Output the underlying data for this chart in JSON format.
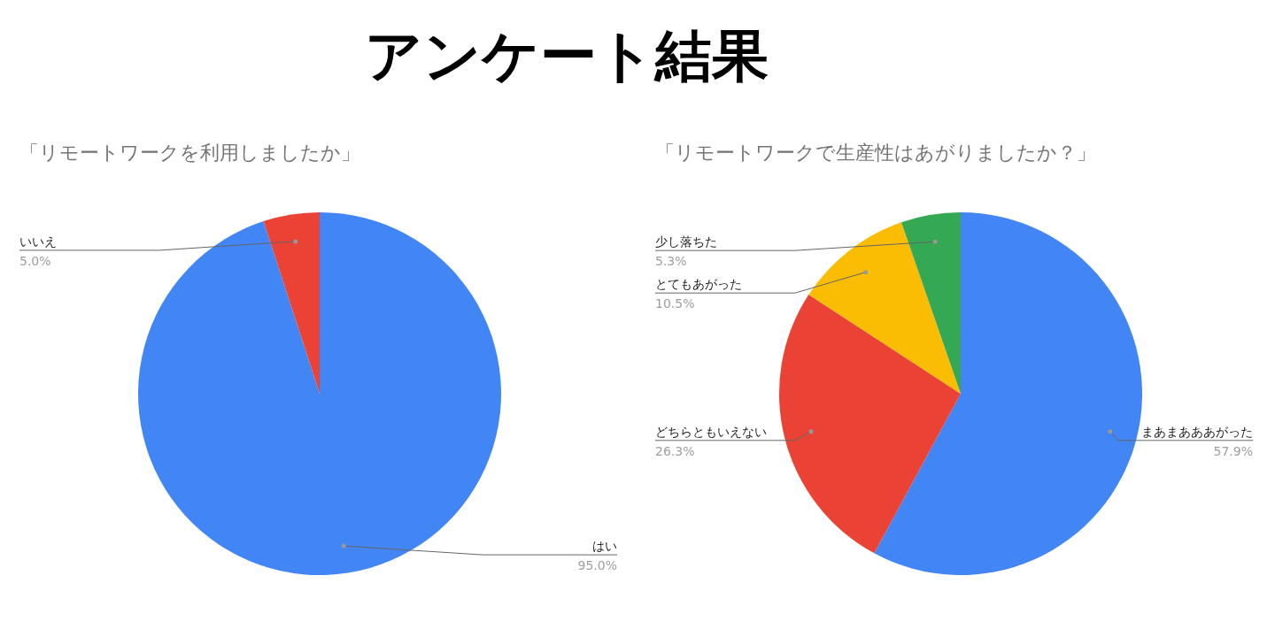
{
  "chart_data": [
    {
      "type": "other",
      "title": "アンケート結果"
    },
    {
      "type": "pie",
      "title": "「リモートワークを利用しましたか」",
      "categories": [
        "はい",
        "いいえ"
      ],
      "values": [
        95.0,
        5.0
      ],
      "colors": [
        "#4285f4",
        "#ea4335"
      ],
      "value_labels": [
        "95.0%",
        "5.0%"
      ],
      "legend": false
    },
    {
      "type": "pie",
      "title": "「リモートワークで生産性はあがりましたか？」",
      "categories": [
        "まあまあああがった",
        "どちらともいえない",
        "とてもあがった",
        "少し落ちた"
      ],
      "values": [
        57.9,
        26.3,
        10.5,
        5.3
      ],
      "colors": [
        "#4285f4",
        "#ea4335",
        "#fbbc04",
        "#34a853"
      ],
      "value_labels": [
        "57.9%",
        "26.3%",
        "10.5%",
        "5.3%"
      ],
      "legend": false
    }
  ]
}
